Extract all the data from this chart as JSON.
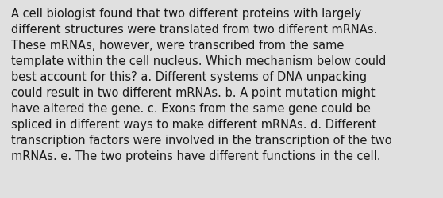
{
  "background_color": "#e0e0e0",
  "text_color": "#1a1a1a",
  "font_size": 10.5,
  "font_family": "DejaVu Sans",
  "text": "A cell biologist found that two different proteins with largely\ndifferent structures were translated from two different mRNAs.\nThese mRNAs, however, were transcribed from the same\ntemplate within the cell nucleus. Which mechanism below could\nbest account for this? a. Different systems of DNA unpacking\ncould result in two different mRNAs. b. A point mutation might\nhave altered the gene. c. Exons from the same gene could be\nspliced in different ways to make different mRNAs. d. Different\ntranscription factors were involved in the transcription of the two\nmRNAs. e. The two proteins have different functions in the cell.",
  "figwidth": 5.58,
  "figheight": 2.51,
  "dpi": 100
}
